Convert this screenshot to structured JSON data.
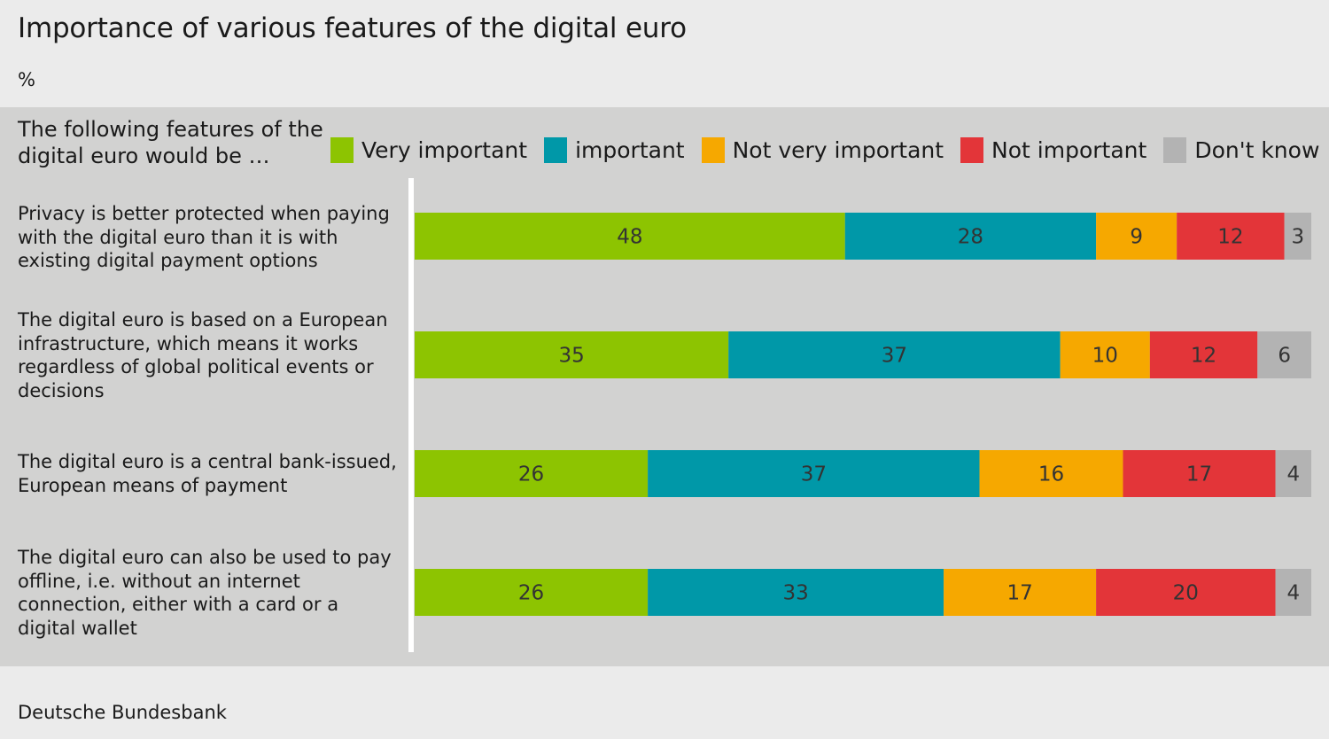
{
  "header": {
    "title": "Importance of various features of the digital euro",
    "unit": "%"
  },
  "legend_title": "The following features of the digital euro would be …",
  "footer": {
    "source": "Deutsche Bundesbank"
  },
  "colors": {
    "Very important": "#8dc401",
    "important": "#0098a8",
    "Not very important": "#f6a800",
    "Not important": "#e33539",
    "Don't know": "#b3b3b3"
  },
  "chart_data": {
    "type": "bar",
    "orientation": "horizontal",
    "stacked": true,
    "title": "Importance of various features of the digital euro",
    "unit": "%",
    "xlim": [
      0,
      100
    ],
    "grid": false,
    "legend_position": "top",
    "categories": [
      "Privacy is better protected when paying with the digital euro than it is with existing digital payment options",
      "The digital euro is based on a European infrastructure, which means it works regardless of global political events or decisions",
      "The digital euro is a central bank-issued, European means of payment",
      "The digital euro can also be used to pay offline, i.e. without an internet connection, either with a card or a digital wallet"
    ],
    "series": [
      {
        "name": "Very important",
        "values": [
          48,
          35,
          26,
          26
        ]
      },
      {
        "name": "important",
        "values": [
          28,
          37,
          37,
          33
        ]
      },
      {
        "name": "Not very important",
        "values": [
          9,
          10,
          16,
          17
        ]
      },
      {
        "name": "Not important",
        "values": [
          12,
          12,
          17,
          20
        ]
      },
      {
        "name": "Don't know",
        "values": [
          3,
          6,
          4,
          4
        ]
      }
    ]
  }
}
